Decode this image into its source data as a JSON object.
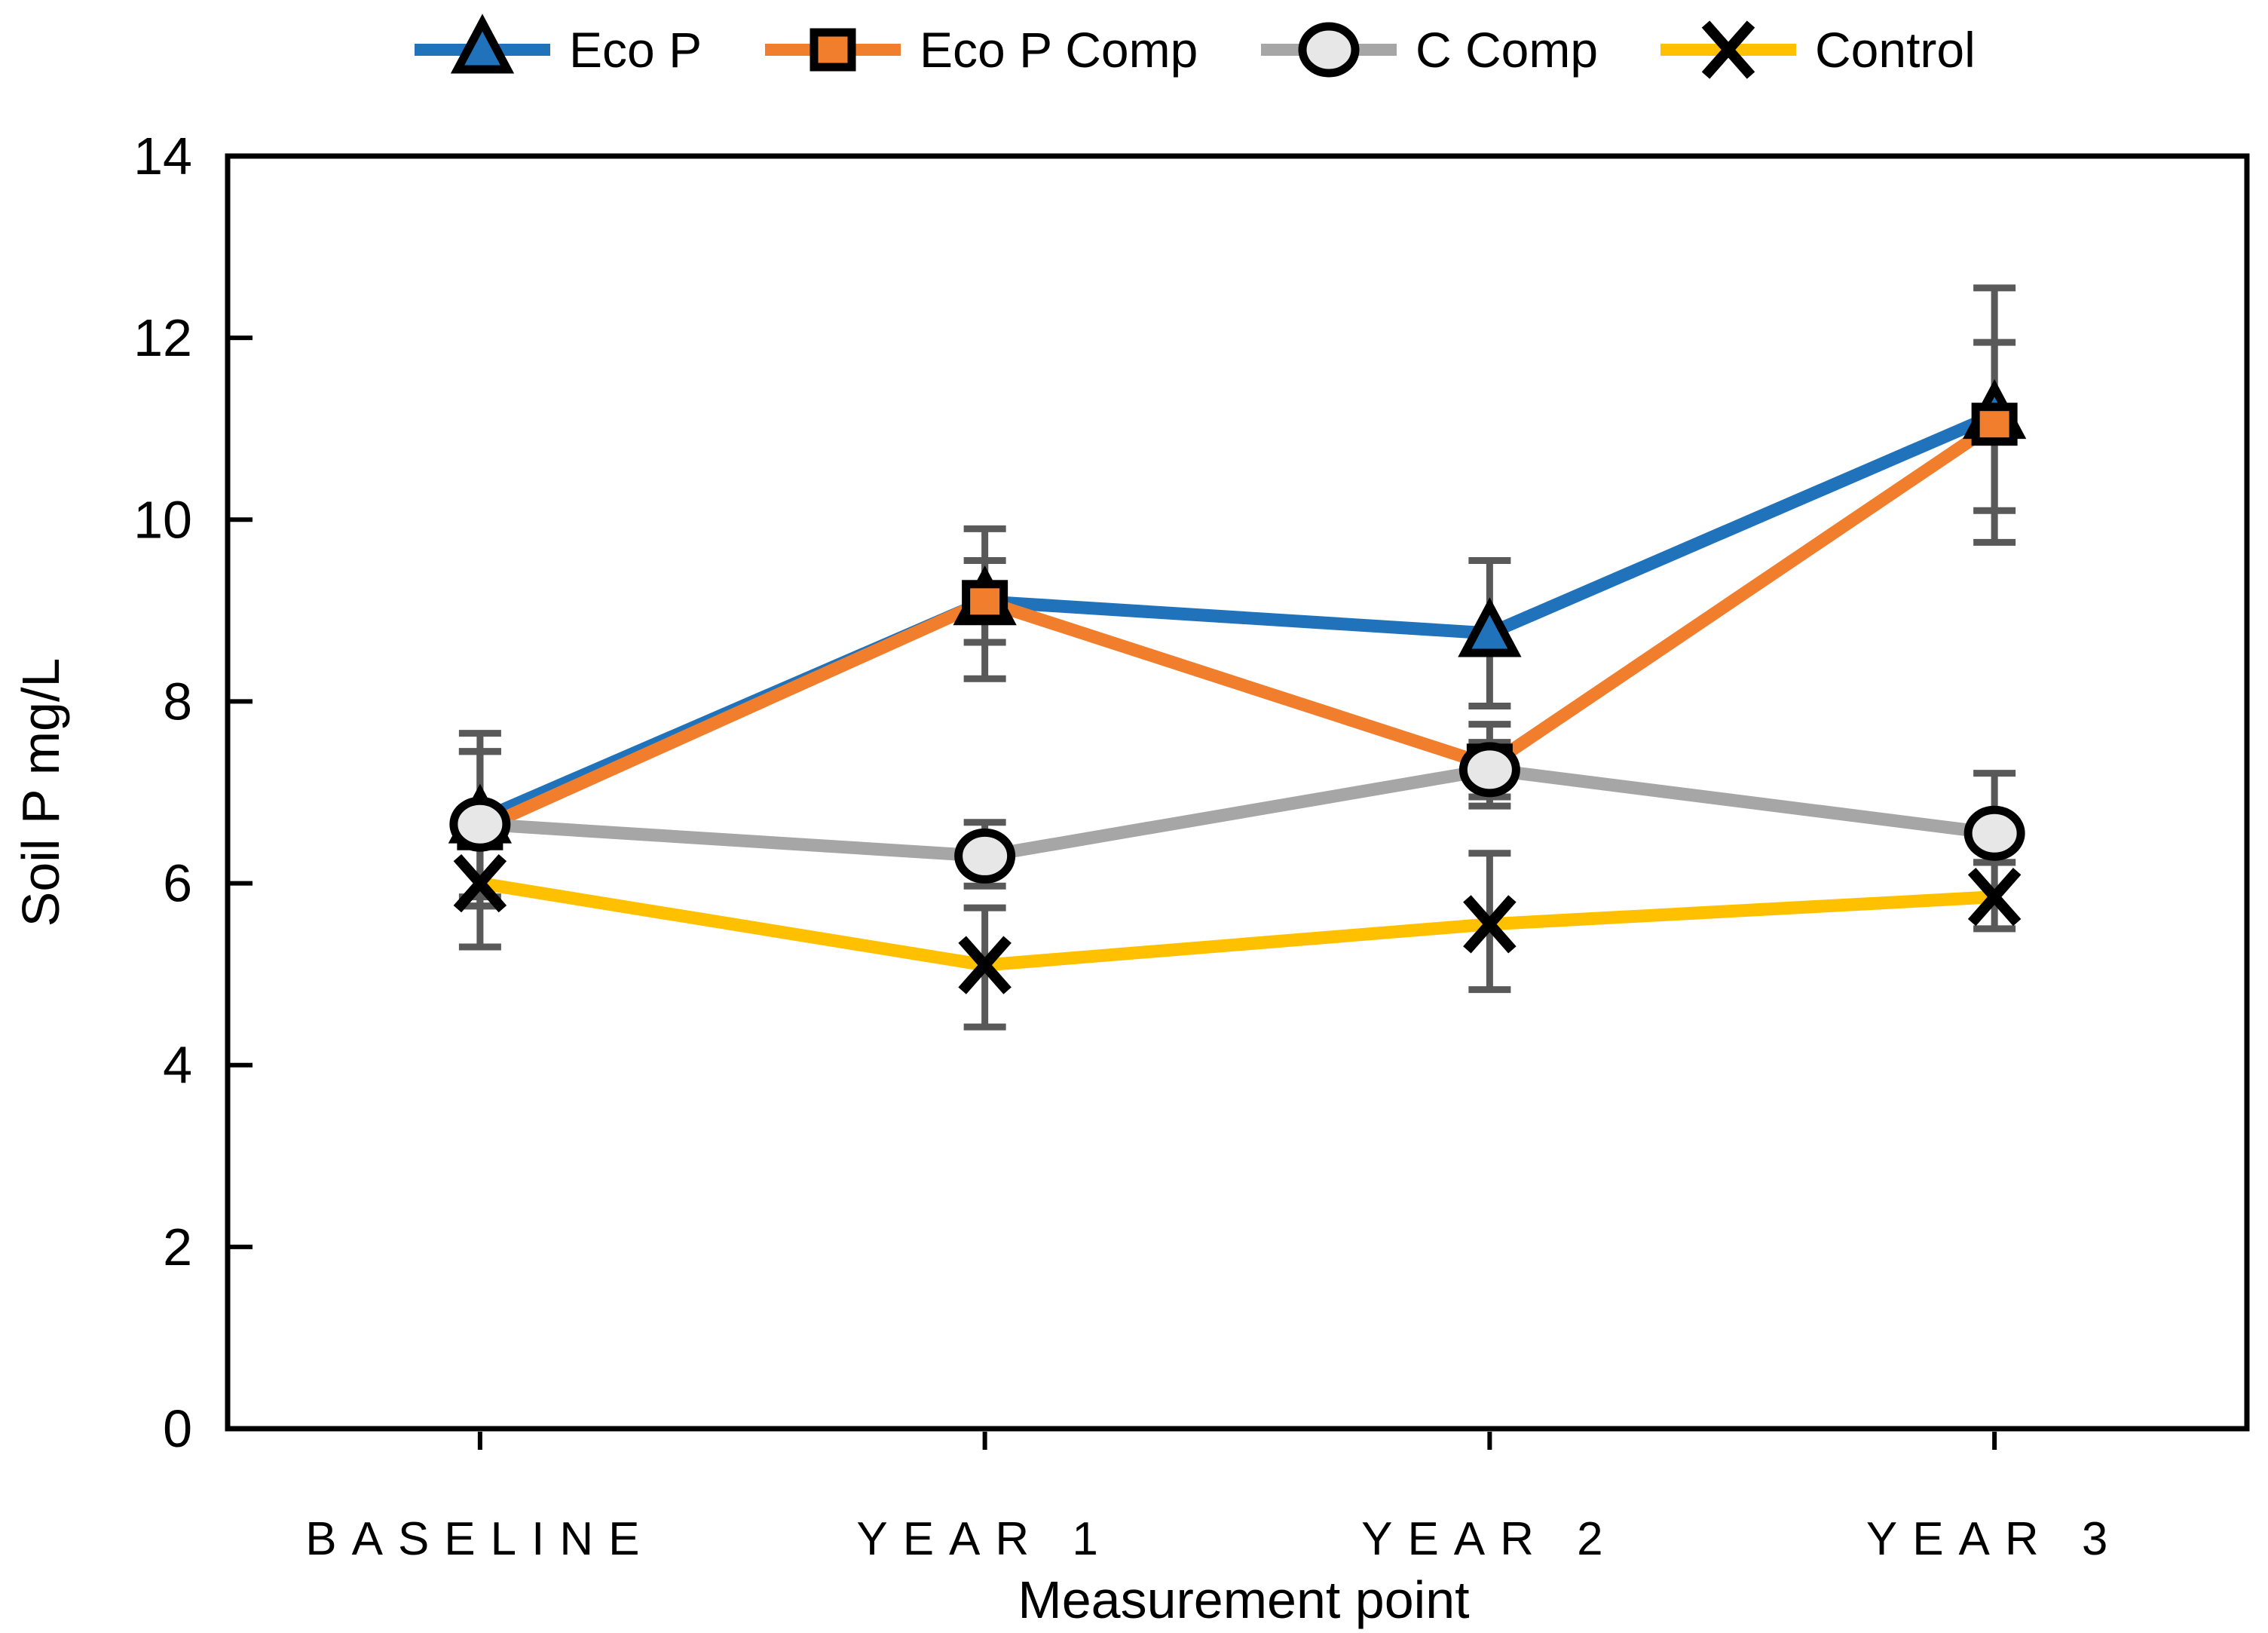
{
  "chart_data": {
    "type": "line",
    "title": "",
    "xlabel": "Measurement point",
    "ylabel": "Soil P mg/L",
    "categories": [
      "BASELINE",
      "YEAR 1",
      "YEAR 2",
      "YEAR 3"
    ],
    "ylim": [
      0,
      14
    ],
    "y_ticks": [
      0,
      2,
      4,
      6,
      8,
      10,
      12,
      14
    ],
    "grid": false,
    "legend_position": "top",
    "error_bar_color": "#595959",
    "axis_color": "#000000",
    "series": [
      {
        "name": "Eco P",
        "marker": "triangle",
        "line_color": "#2073BB",
        "marker_fill": "#2073BB",
        "marker_stroke": "#000000",
        "values": [
          6.7,
          9.1,
          8.75,
          11.15
        ],
        "err_up": [
          0.95,
          0.8,
          0.8,
          1.4
        ],
        "err_dn": [
          0.95,
          0.85,
          0.8,
          1.4
        ]
      },
      {
        "name": "Eco P Comp",
        "marker": "square",
        "line_color": "#F07E2D",
        "marker_fill": "#F07E2D",
        "marker_stroke": "#000000",
        "values": [
          6.6,
          9.1,
          7.3,
          11.05
        ],
        "err_up": [
          0.85,
          0.45,
          0.45,
          0.9
        ],
        "err_dn": [
          0.85,
          0.45,
          0.45,
          0.95
        ]
      },
      {
        "name": "C Comp",
        "marker": "circle",
        "line_color": "#A6A6A6",
        "marker_fill": "#E8E7E7",
        "marker_stroke": "#000000",
        "values": [
          6.65,
          6.3,
          7.25,
          6.55
        ],
        "err_up": [
          0.8,
          0.37,
          0.3,
          0.66
        ],
        "err_dn": [
          0.8,
          0.33,
          0.3,
          0.32
        ]
      },
      {
        "name": "Control",
        "marker": "x",
        "line_color": "#FFC000",
        "marker_fill": "#000000",
        "marker_stroke": "#000000",
        "values": [
          6.0,
          5.1,
          5.55,
          5.85
        ],
        "err_up": [
          0.7,
          0.63,
          0.78,
          0.38
        ],
        "err_dn": [
          0.7,
          0.68,
          0.72,
          0.35
        ]
      }
    ]
  }
}
